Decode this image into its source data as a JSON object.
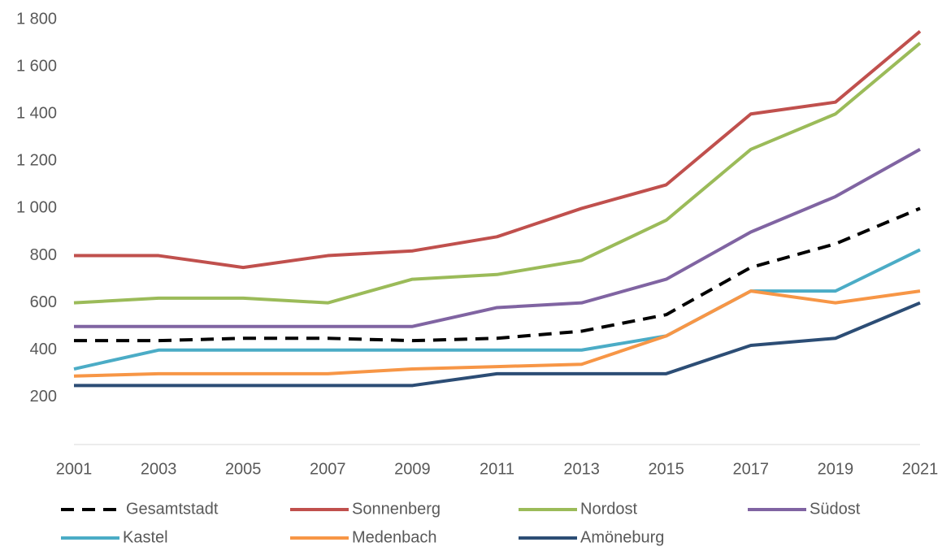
{
  "chart_data": {
    "type": "line",
    "x": [
      2001,
      2003,
      2005,
      2007,
      2009,
      2011,
      2013,
      2015,
      2017,
      2019,
      2021
    ],
    "xlim": [
      2001,
      2021
    ],
    "xticks": [
      2001,
      2003,
      2005,
      2007,
      2009,
      2011,
      2013,
      2015,
      2017,
      2019,
      2021
    ],
    "ylim": [
      0,
      1800
    ],
    "yticks": [
      {
        "value": 200,
        "label": "200"
      },
      {
        "value": 400,
        "label": "400"
      },
      {
        "value": 600,
        "label": "600"
      },
      {
        "value": 800,
        "label": "800"
      },
      {
        "value": 1000,
        "label": "1 000"
      },
      {
        "value": 1200,
        "label": "1 200"
      },
      {
        "value": 1400,
        "label": "1 400"
      },
      {
        "value": 1600,
        "label": "1 600"
      },
      {
        "value": 1800,
        "label": "1 800"
      }
    ],
    "grid": false,
    "legend": "bottom",
    "series": [
      {
        "name": "Gesamtstadt",
        "color": "#000000",
        "dashed": true,
        "values": [
          440,
          440,
          450,
          450,
          440,
          450,
          480,
          550,
          750,
          850,
          1000
        ]
      },
      {
        "name": "Sonnenberg",
        "color": "#c0504d",
        "values": [
          800,
          800,
          750,
          800,
          820,
          880,
          1000,
          1100,
          1400,
          1450,
          1750
        ]
      },
      {
        "name": "Nordost",
        "color": "#9bbb59",
        "values": [
          600,
          620,
          620,
          600,
          700,
          720,
          780,
          950,
          1250,
          1400,
          1700
        ]
      },
      {
        "name": "Südost",
        "color": "#8064a2",
        "values": [
          500,
          500,
          500,
          500,
          500,
          580,
          600,
          700,
          900,
          1050,
          1250
        ]
      },
      {
        "name": "Kastel",
        "color": "#4bacc6",
        "values": [
          320,
          400,
          400,
          400,
          400,
          400,
          400,
          460,
          650,
          650,
          825
        ]
      },
      {
        "name": "Medenbach",
        "color": "#f79646",
        "values": [
          290,
          300,
          300,
          300,
          320,
          330,
          340,
          460,
          650,
          600,
          650
        ]
      },
      {
        "name": "Amöneburg",
        "color": "#2c4d75",
        "values": [
          250,
          250,
          250,
          250,
          250,
          300,
          300,
          300,
          420,
          450,
          600
        ]
      }
    ]
  }
}
